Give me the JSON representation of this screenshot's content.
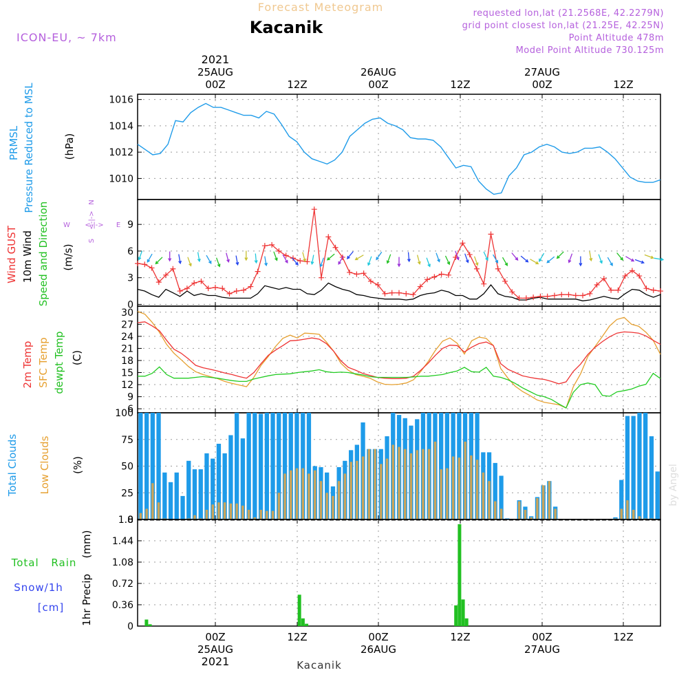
{
  "header": {
    "supertitle": "Forecast Meteogram",
    "location": "Kacanik",
    "model": "ICON-EU, ~ 7km",
    "requested": "requested lon,lat (21.2568E, 42.2279N)",
    "grid_point": "grid point closest lon,lat (21.25E, 42.25N)",
    "point_altitude": "Point Altitude 478m",
    "model_altitude": "Model Point Altitude 730.125m",
    "credit": "by Angel",
    "footer_location": "Kacanik"
  },
  "time_axis": {
    "year": "2021",
    "day_labels": [
      "25AUG",
      "26AUG",
      "27AUG"
    ],
    "hour_labels": [
      "00Z",
      "12Z",
      "00Z",
      "12Z",
      "00Z",
      "12Z"
    ]
  },
  "colors": {
    "pressure": "#1e9be9",
    "gust": "#ee3333",
    "wind": "#000000",
    "temp2m": "#ee3333",
    "sfc": "#e6a030",
    "dewpt": "#22cc22",
    "total_clouds": "#1e9be9",
    "low_clouds": "#c9a55c",
    "precip": "#22c022",
    "header_purple": "#b560dd",
    "supertitle": "#f0c890"
  },
  "chart_data": [
    {
      "type": "line",
      "title": "PRMSL",
      "ylabel": "Pressure Reduced to MSL",
      "unit": "(hPa)",
      "ylim": [
        1008.4,
        1016.4
      ],
      "yticks": [
        "1010",
        "1012",
        "1014",
        "1016"
      ],
      "series": [
        {
          "name": "PRMSL",
          "values": [
            1012.6,
            1012.2,
            1011.8,
            1011.9,
            1012.6,
            1014.4,
            1014.3,
            1015.0,
            1015.4,
            1015.7,
            1015.4,
            1015.4,
            1015.2,
            1015.0,
            1014.8,
            1014.8,
            1014.6,
            1015.1,
            1014.9,
            1014.1,
            1013.2,
            1012.8,
            1012.0,
            1011.5,
            1011.3,
            1011.1,
            1011.4,
            1012.0,
            1013.2,
            1013.7,
            1014.2,
            1014.5,
            1014.6,
            1014.2,
            1014.0,
            1013.7,
            1013.1,
            1013.0,
            1013.0,
            1012.9,
            1012.4,
            1011.6,
            1010.8,
            1011.0,
            1010.9,
            1009.8,
            1009.2,
            1008.8,
            1008.9,
            1010.2,
            1010.8,
            1011.8,
            1012.0,
            1012.4,
            1012.6,
            1012.4,
            1012.0,
            1011.9,
            1012.0,
            1012.3,
            1012.3,
            1012.4,
            1012.0,
            1011.5,
            1010.8,
            1010.1,
            1009.8,
            1009.7,
            1009.7,
            1009.9
          ]
        }
      ]
    },
    {
      "type": "line",
      "title": "Wind GUST",
      "title2": "10m Wind",
      "title3": "Speed and Direction",
      "unit": "(m/s)",
      "ylim": [
        -0.2,
        11.8
      ],
      "yticks": [
        "0",
        "3",
        "6",
        "9"
      ],
      "compass": {
        "n": "N",
        "s": "S",
        "w": "W",
        "e": "E",
        "arrow": "<-|->"
      },
      "series": [
        {
          "name": "Wind GUST",
          "values": [
            4.6,
            4.5,
            4.1,
            2.5,
            3.3,
            4.0,
            1.5,
            1.8,
            2.4,
            2.6,
            1.8,
            1.9,
            1.8,
            1.2,
            1.5,
            1.6,
            2.0,
            3.7,
            6.6,
            6.7,
            6.0,
            5.5,
            5.2,
            4.9,
            4.8,
            10.7,
            3.0,
            7.6,
            6.4,
            5.3,
            3.6,
            3.4,
            3.5,
            2.6,
            2.2,
            1.2,
            1.3,
            1.3,
            1.2,
            1.1,
            2.0,
            2.8,
            3.1,
            3.4,
            3.3,
            5.3,
            6.9,
            5.6,
            4.0,
            2.3,
            7.9,
            4.0,
            2.6,
            1.4,
            0.7,
            0.7,
            0.8,
            0.9,
            0.9,
            1.0,
            1.1,
            1.1,
            1.0,
            1.0,
            1.2,
            2.2,
            2.9,
            1.6,
            1.6,
            3.2,
            3.8,
            3.2,
            1.8,
            1.6,
            1.5
          ]
        },
        {
          "name": "10m Wind",
          "values": [
            1.7,
            1.5,
            1.1,
            0.8,
            1.7,
            1.3,
            0.9,
            1.5,
            1.0,
            1.2,
            1.0,
            1.0,
            0.8,
            0.7,
            0.7,
            0.7,
            0.7,
            1.2,
            2.1,
            1.9,
            1.7,
            1.9,
            1.7,
            1.7,
            1.2,
            1.1,
            1.6,
            2.4,
            2.0,
            1.7,
            1.5,
            1.1,
            1.0,
            0.8,
            0.7,
            0.6,
            0.6,
            0.6,
            0.5,
            0.6,
            1.0,
            1.2,
            1.3,
            1.6,
            1.4,
            1.0,
            1.0,
            0.6,
            0.6,
            1.2,
            2.2,
            1.2,
            0.9,
            0.8,
            0.5,
            0.5,
            0.7,
            0.8,
            0.6,
            0.6,
            0.6,
            0.6,
            0.6,
            0.4,
            0.5,
            0.7,
            0.9,
            0.7,
            0.6,
            1.2,
            1.7,
            1.6,
            1.1,
            0.8,
            1.1
          ]
        }
      ]
    },
    {
      "type": "line",
      "title": "2m Temp",
      "title2": "SFC Temp",
      "title3": "dewpt Temp",
      "unit": "(C)",
      "ylim": [
        5,
        31.5
      ],
      "yticks": [
        "6",
        "9",
        "12",
        "15",
        "18",
        "21",
        "24",
        "27",
        "30"
      ],
      "series": [
        {
          "name": "2m Temp",
          "values": [
            27.4,
            27.6,
            26.6,
            25.4,
            23.0,
            20.8,
            19.8,
            18.4,
            16.8,
            16.2,
            15.8,
            15.4,
            14.9,
            14.5,
            14.0,
            13.6,
            15.0,
            17.2,
            19.3,
            20.6,
            21.7,
            22.9,
            23.0,
            23.3,
            23.6,
            23.3,
            22.2,
            20.3,
            17.9,
            16.3,
            15.6,
            14.8,
            14.3,
            13.8,
            13.6,
            13.5,
            13.5,
            13.6,
            14.1,
            15.6,
            17.3,
            19.3,
            21.0,
            21.8,
            21.7,
            20.1,
            21.3,
            22.2,
            22.6,
            21.7,
            17.2,
            15.8,
            15.0,
            14.2,
            13.8,
            13.5,
            13.3,
            12.8,
            12.2,
            12.7,
            15.3,
            17.1,
            19.5,
            21.3,
            22.7,
            23.9,
            24.8,
            25.1,
            25.0,
            24.8,
            24.1,
            23.0,
            22.0
          ]
        },
        {
          "name": "SFC Temp",
          "values": [
            30.2,
            29.5,
            27.5,
            25.0,
            22.0,
            19.8,
            18.2,
            16.5,
            15.2,
            14.5,
            14.0,
            13.5,
            12.8,
            12.3,
            11.9,
            11.5,
            13.8,
            16.8,
            19.0,
            21.5,
            23.5,
            24.3,
            23.6,
            24.8,
            24.7,
            24.5,
            22.6,
            20.3,
            17.3,
            15.6,
            14.5,
            14.1,
            13.6,
            12.7,
            12.1,
            12.0,
            12.1,
            12.4,
            13.2,
            15.3,
            17.7,
            20.5,
            22.8,
            23.6,
            22.3,
            19.6,
            22.9,
            23.8,
            23.5,
            21.7,
            16.0,
            13.6,
            11.6,
            10.3,
            9.3,
            8.2,
            7.6,
            7.3,
            7.0,
            6.2,
            11.5,
            14.7,
            19.0,
            21.5,
            24.0,
            26.6,
            28.2,
            28.7,
            27.0,
            26.5,
            25.0,
            23.0,
            19.5
          ]
        },
        {
          "name": "dewpt Temp",
          "values": [
            14.1,
            14.1,
            14.8,
            16.4,
            14.5,
            13.6,
            13.6,
            13.6,
            13.8,
            14.0,
            13.8,
            13.6,
            13.3,
            13.0,
            12.8,
            12.8,
            13.4,
            13.8,
            14.2,
            14.5,
            14.6,
            14.7,
            15.0,
            15.2,
            15.4,
            15.7,
            15.2,
            15.0,
            15.1,
            15.0,
            14.7,
            14.4,
            14.0,
            13.8,
            13.8,
            13.8,
            13.8,
            13.8,
            13.9,
            14.1,
            14.1,
            14.3,
            14.5,
            15.0,
            15.4,
            16.3,
            15.2,
            15.1,
            16.3,
            14.1,
            13.8,
            13.2,
            12.3,
            11.2,
            10.3,
            9.4,
            9.0,
            8.3,
            7.2,
            6.2,
            10.1,
            12.0,
            12.4,
            12.0,
            9.3,
            9.1,
            10.2,
            10.5,
            10.9,
            11.6,
            12.1,
            14.8,
            13.5
          ]
        }
      ]
    },
    {
      "type": "bar",
      "title": "Total Clouds",
      "title2": "Low Clouds",
      "unit": "(%)",
      "ylim": [
        0,
        100
      ],
      "yticks": [
        "0",
        "25",
        "50",
        "75",
        "100"
      ],
      "series": [
        {
          "name": "Total Clouds",
          "values": [
            100,
            100,
            100,
            100,
            44,
            35,
            44,
            22,
            55,
            47,
            47,
            62,
            57,
            71,
            62,
            79,
            100,
            76,
            100,
            100,
            99,
            100,
            100,
            100,
            100,
            100,
            100,
            100,
            100,
            50,
            49,
            44,
            31,
            49,
            55,
            65,
            70,
            91,
            66,
            66,
            66,
            78,
            100,
            98,
            95,
            88,
            94,
            100,
            100,
            100,
            100,
            100,
            100,
            100,
            100,
            100,
            100,
            63,
            63,
            53,
            41,
            1,
            0,
            18,
            12,
            3,
            21,
            32,
            36,
            12,
            0,
            0,
            0,
            0,
            0,
            0,
            0,
            0,
            0,
            2,
            37,
            97,
            97,
            100,
            100,
            78,
            45
          ]
        },
        {
          "name": "Low Clouds",
          "values": [
            6,
            10,
            34,
            16,
            1,
            0,
            0,
            0,
            1,
            4,
            1,
            9,
            14,
            16,
            16,
            15,
            15,
            13,
            9,
            2,
            9,
            8,
            8,
            25,
            43,
            46,
            48,
            48,
            43,
            46,
            36,
            25,
            22,
            36,
            43,
            54,
            55,
            59,
            66,
            66,
            52,
            57,
            70,
            68,
            66,
            62,
            65,
            66,
            66,
            73,
            47,
            48,
            59,
            58,
            73,
            60,
            56,
            44,
            36,
            17,
            10,
            0,
            0,
            17,
            9,
            2,
            20,
            32,
            36,
            10,
            0,
            0,
            0,
            0,
            0,
            0,
            0,
            0,
            0,
            1,
            10,
            18,
            9,
            3,
            1,
            1,
            0
          ]
        }
      ]
    },
    {
      "type": "bar",
      "title": "Total Rain",
      "title2": "Snow/1h",
      "title3": "[cm]",
      "ylabel": "1hr Precip",
      "unit": "(mm)",
      "ylim": [
        0,
        1.8
      ],
      "yticks": [
        "0",
        "0.36",
        "0.72",
        "1.08",
        "1.44",
        "1.8"
      ],
      "series": [
        {
          "name": "Total Rain",
          "values": [
            0,
            0,
            0.11,
            0.03,
            0,
            0,
            0,
            0,
            0,
            0,
            0,
            0,
            0,
            0,
            0,
            0,
            0,
            0,
            0,
            0,
            0,
            0,
            0,
            0,
            0,
            0,
            0,
            0,
            0,
            0,
            0,
            0,
            0,
            0,
            0,
            0,
            0,
            0,
            0,
            0,
            0,
            0,
            0,
            0,
            0,
            0.53,
            0.13,
            0.04,
            0,
            0,
            0,
            0,
            0,
            0,
            0,
            0,
            0,
            0,
            0,
            0,
            0,
            0,
            0,
            0,
            0,
            0,
            0,
            0,
            0,
            0,
            0,
            0,
            0,
            0,
            0,
            0,
            0,
            0,
            0,
            0,
            0,
            0,
            0,
            0,
            0,
            0,
            0,
            0,
            0,
            0.35,
            1.72,
            0.45,
            0.13,
            0,
            0,
            0,
            0,
            0,
            0,
            0,
            0,
            0,
            0,
            0,
            0,
            0,
            0,
            0,
            0,
            0,
            0,
            0,
            0,
            0,
            0,
            0,
            0,
            0,
            0,
            0,
            0,
            0,
            0,
            0,
            0,
            0,
            0,
            0,
            0,
            0,
            0,
            0,
            0,
            0,
            0,
            0,
            0,
            0,
            0,
            0,
            0,
            0,
            0,
            0,
            0,
            0,
            0
          ]
        }
      ]
    }
  ],
  "wind_arrow_colors": [
    "#1ec8dc",
    "#1e9be9",
    "#22c022",
    "#9b30d8",
    "#2244ee",
    "#c8c030"
  ]
}
